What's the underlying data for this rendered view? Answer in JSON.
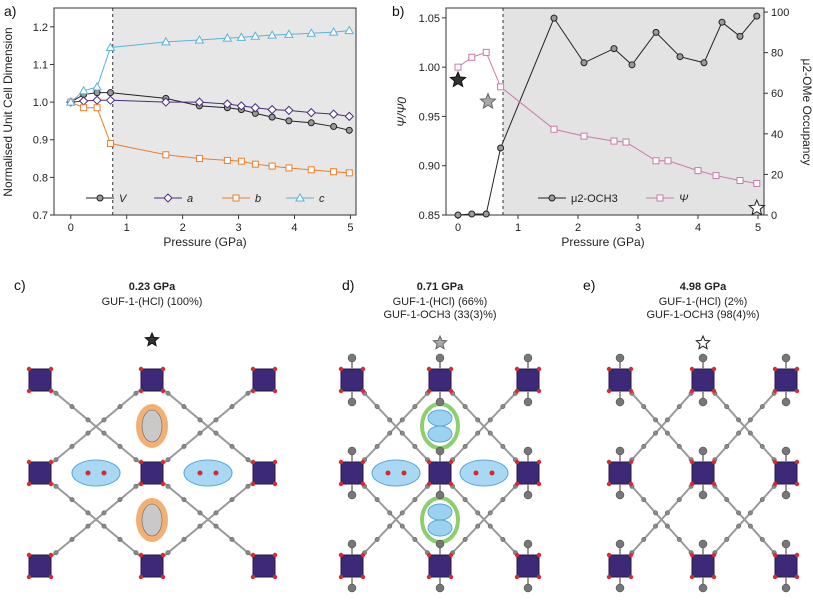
{
  "chart_data": [
    {
      "panel": "a)",
      "type": "line",
      "xlabel": "Pressure (GPa)",
      "ylabel": "Normalised Unit Cell Dimension",
      "xlim": [
        -0.3,
        5.1
      ],
      "ylim": [
        0.7,
        1.25
      ],
      "xticks": [
        "0",
        "1",
        "2",
        "3",
        "4",
        "5"
      ],
      "yticks": [
        "0.7",
        "0.8",
        "0.9",
        "1.0",
        "1.1",
        "1.2"
      ],
      "divider_x": 0.75,
      "shaded_from": 0.75,
      "legend_position": "bottom-center",
      "series": [
        {
          "name": "V",
          "marker": "circle",
          "color": "#222222",
          "fill": "#9a9a9a",
          "x": [
            0,
            0.23,
            0.47,
            0.71,
            1.7,
            2.3,
            2.8,
            3.05,
            3.3,
            3.6,
            3.9,
            4.3,
            4.7,
            4.98
          ],
          "y": [
            1.0,
            1.02,
            1.025,
            1.025,
            1.01,
            0.99,
            0.985,
            0.98,
            0.97,
            0.96,
            0.95,
            0.945,
            0.935,
            0.925
          ]
        },
        {
          "name": "a",
          "marker": "diamond",
          "color": "#4b2d7f",
          "fill": "#ffffff",
          "x": [
            0,
            0.23,
            0.47,
            0.71,
            1.7,
            2.3,
            2.8,
            3.05,
            3.3,
            3.6,
            3.9,
            4.3,
            4.7,
            4.98
          ],
          "y": [
            1.0,
            1.003,
            1.005,
            1.005,
            1.0,
            1.0,
            0.995,
            0.99,
            0.985,
            0.98,
            0.978,
            0.972,
            0.968,
            0.962
          ]
        },
        {
          "name": "b",
          "marker": "square",
          "color": "#ef7d2a",
          "fill": "#ffffff",
          "x": [
            0,
            0.23,
            0.47,
            0.71,
            1.7,
            2.3,
            2.8,
            3.05,
            3.3,
            3.6,
            3.9,
            4.3,
            4.7,
            4.98
          ],
          "y": [
            1.0,
            0.985,
            0.985,
            0.89,
            0.86,
            0.85,
            0.845,
            0.843,
            0.835,
            0.83,
            0.825,
            0.82,
            0.815,
            0.812
          ]
        },
        {
          "name": "c",
          "marker": "triangle",
          "color": "#59b5d9",
          "fill": "#ffffff",
          "x": [
            0,
            0.23,
            0.47,
            0.71,
            1.7,
            2.3,
            2.8,
            3.05,
            3.3,
            3.6,
            3.9,
            4.3,
            4.7,
            4.98
          ],
          "y": [
            1.0,
            1.03,
            1.04,
            1.145,
            1.16,
            1.165,
            1.17,
            1.172,
            1.175,
            1.178,
            1.18,
            1.183,
            1.186,
            1.19
          ]
        }
      ]
    },
    {
      "panel": "b)",
      "type": "line",
      "xlabel": "Pressure (GPa)",
      "ylabel": "Ψ/Ψ0",
      "ylabel_right": "μ2-OMe Occupancy",
      "xlim": [
        -0.2,
        5.1
      ],
      "ylim": [
        0.85,
        1.06
      ],
      "ylim_right": [
        0,
        102
      ],
      "xticks": [
        "0",
        "1",
        "2",
        "3",
        "4",
        "5"
      ],
      "yticks": [
        "0.85",
        "0.90",
        "0.95",
        "1.00",
        "1.05"
      ],
      "yticks_right": [
        "0",
        "20",
        "40",
        "60",
        "80",
        "100"
      ],
      "divider_x": 0.75,
      "shaded_from": 0.75,
      "legend_position": "bottom-center",
      "legend": [
        "μ2-OCH3",
        "Ψ"
      ],
      "series": [
        {
          "name": "μ2-OCH3",
          "axis": "right",
          "marker": "circle",
          "color": "#222222",
          "fill": "#9a9a9a",
          "x": [
            0,
            0.23,
            0.47,
            0.71,
            1.6,
            2.1,
            2.6,
            2.9,
            3.3,
            3.7,
            4.1,
            4.4,
            4.7,
            4.98
          ],
          "y": [
            0,
            0.5,
            0.5,
            33,
            97,
            75,
            82,
            74,
            90,
            78,
            75,
            95,
            88,
            98
          ]
        },
        {
          "name": "Ψ",
          "axis": "left",
          "marker": "square",
          "color": "#c97aa8",
          "fill": "#ffffff",
          "x": [
            0,
            0.23,
            0.47,
            0.71,
            1.6,
            2.1,
            2.6,
            2.8,
            3.3,
            3.5,
            4.0,
            4.3,
            4.7,
            4.98
          ],
          "y": [
            1.0,
            1.01,
            1.015,
            0.98,
            0.937,
            0.93,
            0.925,
            0.924,
            0.905,
            0.905,
            0.895,
            0.89,
            0.885,
            0.882
          ]
        }
      ],
      "markers": [
        {
          "label": "star-dark",
          "x": 0.0,
          "y": 0.987
        },
        {
          "label": "star-grey",
          "x": 0.5,
          "y": 0.965
        },
        {
          "label": "star-outline",
          "x": 4.98,
          "y": 0.857
        }
      ]
    }
  ],
  "structures": [
    {
      "panel": "c)",
      "pressure": "0.23 GPa",
      "lines": [
        "GUF-1-(HCl) (100%)"
      ],
      "star": "dark"
    },
    {
      "panel": "d)",
      "pressure": "0.71 GPa",
      "lines": [
        "GUF-1-(HCl) (66%)",
        "GUF-1-OCH3 (33(3)%)"
      ],
      "star": "grey"
    },
    {
      "panel": "e)",
      "pressure": "4.98 GPa",
      "lines": [
        "GUF-1-(HCl) (2%)",
        "GUF-1-OCH3 (98(4)%)"
      ],
      "star": "outline"
    }
  ]
}
